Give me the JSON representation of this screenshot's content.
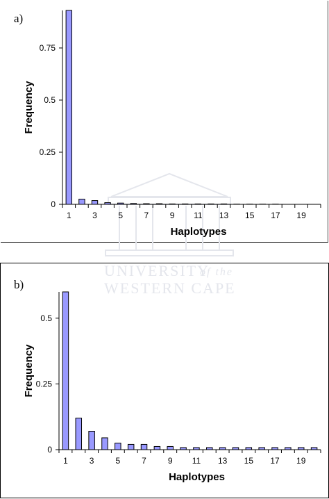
{
  "watermark": {
    "line1": "UNIVERSITY",
    "line1_suffix": "of the",
    "line2": "WESTERN CAPE"
  },
  "chart_data": [
    {
      "panel_label": "a)",
      "type": "bar",
      "xlabel": "Haplotypes",
      "ylabel": "Frequency",
      "ylim": [
        0,
        0.93
      ],
      "yticks": [
        "0",
        "0.25",
        "0.5",
        "0.75"
      ],
      "ytick_values": [
        0,
        0.25,
        0.5,
        0.75
      ],
      "categories": [
        1,
        2,
        3,
        4,
        5,
        6,
        7,
        8,
        9,
        10,
        11,
        12,
        13,
        14,
        15,
        16,
        17,
        18,
        19,
        20
      ],
      "xtick_labels": [
        "1",
        "3",
        "5",
        "7",
        "9",
        "11",
        "13",
        "15",
        "17",
        "19"
      ],
      "values": [
        0.93,
        0.025,
        0.018,
        0.008,
        0.006,
        0.004,
        0.003,
        0.003,
        0.002,
        0.002,
        0.002,
        0.002,
        0.002,
        0.001,
        0.001,
        0.001,
        0.001,
        0,
        0,
        0
      ],
      "bar_color": "#9999ff",
      "grid": false
    },
    {
      "panel_label": "b)",
      "type": "bar",
      "xlabel": "Haplotypes",
      "ylabel": "Frequency",
      "ylim": [
        0,
        0.6
      ],
      "yticks": [
        "0",
        "0.25",
        "0.5"
      ],
      "ytick_values": [
        0,
        0.25,
        0.5
      ],
      "categories": [
        1,
        2,
        3,
        4,
        5,
        6,
        7,
        8,
        9,
        10,
        11,
        12,
        13,
        14,
        15,
        16,
        17,
        18,
        19,
        20
      ],
      "xtick_labels": [
        "1",
        "3",
        "5",
        "7",
        "9",
        "11",
        "13",
        "15",
        "17",
        "19"
      ],
      "values": [
        0.6,
        0.12,
        0.07,
        0.045,
        0.025,
        0.02,
        0.02,
        0.012,
        0.012,
        0.008,
        0.008,
        0.008,
        0.008,
        0.008,
        0.008,
        0.008,
        0.008,
        0.008,
        0.008,
        0.008
      ],
      "bar_color": "#9999ff",
      "grid": false
    }
  ]
}
